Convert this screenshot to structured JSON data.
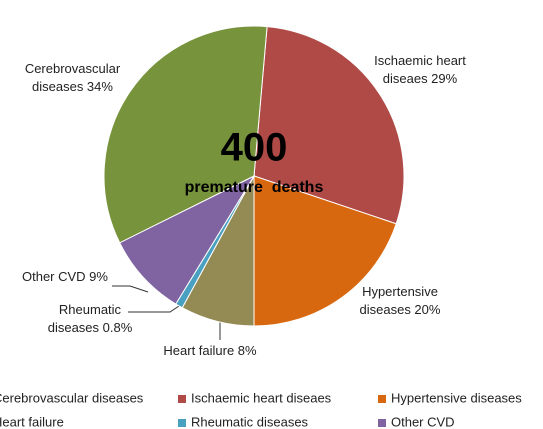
{
  "chart_data": {
    "type": "pie",
    "center_value": "400",
    "center_label": "premature  deaths",
    "categories": [
      "Cerebrovascular diseases",
      "Ischaemic heart diseaes",
      "Hypertensive diseases",
      "Heart failure",
      "Rheumatic diseases",
      "Other CVD"
    ],
    "values": [
      34,
      29,
      20,
      8,
      0.8,
      9
    ],
    "value_labels": [
      "Cerebrovascular diseases 34%",
      "Ischaemic heart diseaes 29%",
      "Hypertensive diseases 20%",
      "Heart failure 8%",
      "Rheumatic diseases 0.8%",
      "Other CVD 9%"
    ],
    "colors": [
      "#77933c",
      "#b04a46",
      "#d8680f",
      "#948a54",
      "#4aa0c0",
      "#8064a2"
    ],
    "legend": "bottom"
  }
}
